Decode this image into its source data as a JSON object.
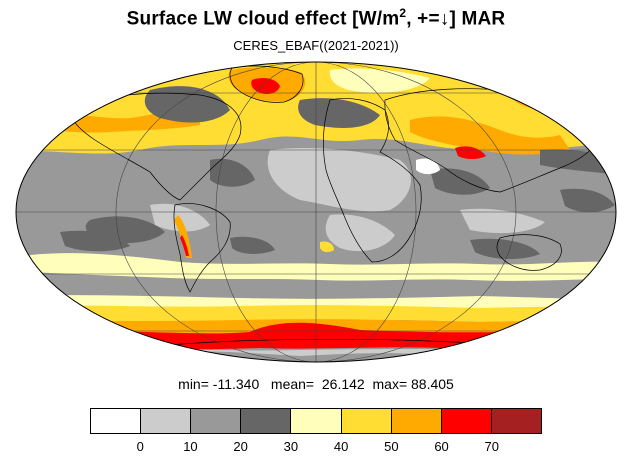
{
  "title": {
    "main": "Surface LW cloud effect [W/m",
    "sup": "2",
    "tail": ", +=↓]  MAR"
  },
  "subtitle": "CERES_EBAF((2021-2021))",
  "stats": {
    "min_label": "min=",
    "min_value": "-11.340",
    "mean_label": "mean=",
    "mean_value": "26.142",
    "max_label": "max=",
    "max_value": "88.405"
  },
  "colorbar": {
    "colors": [
      "#ffffff",
      "#cccccc",
      "#999999",
      "#666666",
      "#ffffbb",
      "#ffdd33",
      "#ffaa00",
      "#ff0000",
      "#a52020"
    ],
    "ticks": [
      "0",
      "10",
      "20",
      "30",
      "40",
      "50",
      "60",
      "70"
    ]
  },
  "map": {
    "projection": "mollweide",
    "ocean_default_level": "#999999",
    "continent_outline_color": "#000000",
    "graticule_color": "#444444"
  }
}
